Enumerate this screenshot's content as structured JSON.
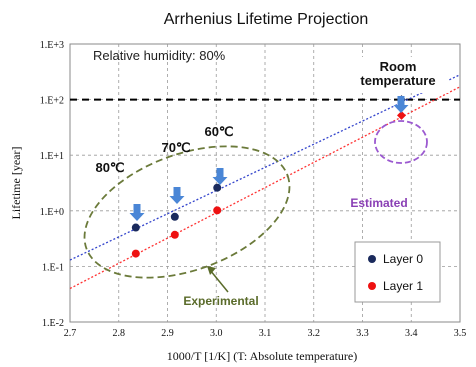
{
  "chart_data": {
    "type": "scatter",
    "title": "Arrhenius Lifetime Projection",
    "xlabel": "1000/T [1/K]  (T: Absolute temperature)",
    "ylabel": "Lifetime [year]",
    "xlim": [
      2.7,
      3.5
    ],
    "ylim": [
      0.01,
      1000
    ],
    "yscale": "log",
    "grid": true,
    "x_ticks": [
      "2.7",
      "2.8",
      "2.9",
      "3.0",
      "3.1",
      "3.2",
      "3.3",
      "3.4",
      "3.5"
    ],
    "y_ticks": [
      "1.E-2",
      "1.E-1",
      "1.E+0",
      "1.E+1",
      "1.E+2",
      "1.E+3"
    ],
    "legend_position": "lower-right",
    "reference_line": {
      "y": 100,
      "style": "dashed",
      "color": "#000000"
    },
    "series": [
      {
        "name": "Layer 0",
        "color": "#1a2a5c",
        "fit_color": "#3344cc",
        "experimental": [
          {
            "x": 2.835,
            "y": 0.5
          },
          {
            "x": 2.915,
            "y": 0.78
          },
          {
            "x": 3.002,
            "y": 2.6
          }
        ],
        "estimated": {
          "x": 3.38,
          "y": 100
        },
        "fit": [
          {
            "x": 2.7,
            "y": 0.13
          },
          {
            "x": 3.5,
            "y": 280
          }
        ]
      },
      {
        "name": "Layer 1",
        "color": "#ee1111",
        "fit_color": "#ff3333",
        "experimental": [
          {
            "x": 2.835,
            "y": 0.17
          },
          {
            "x": 2.915,
            "y": 0.37
          },
          {
            "x": 3.002,
            "y": 1.02
          }
        ],
        "estimated": {
          "x": 3.38,
          "y": 52
        },
        "fit": [
          {
            "x": 2.7,
            "y": 0.04
          },
          {
            "x": 3.5,
            "y": 170
          }
        ]
      }
    ],
    "annotations": {
      "humidity": "Relative humidity: 80%",
      "temp_80": "80℃",
      "temp_70": "70℃",
      "temp_60": "60℃",
      "room_line1": "Room",
      "room_line2": "temperature",
      "experimental": "Experimental",
      "estimated": "Estimated"
    }
  },
  "colors": {
    "arrow": "#4a86d6",
    "experimental_ellipse": "#6b7a3a",
    "estimated_ellipse": "#9b59d0"
  }
}
